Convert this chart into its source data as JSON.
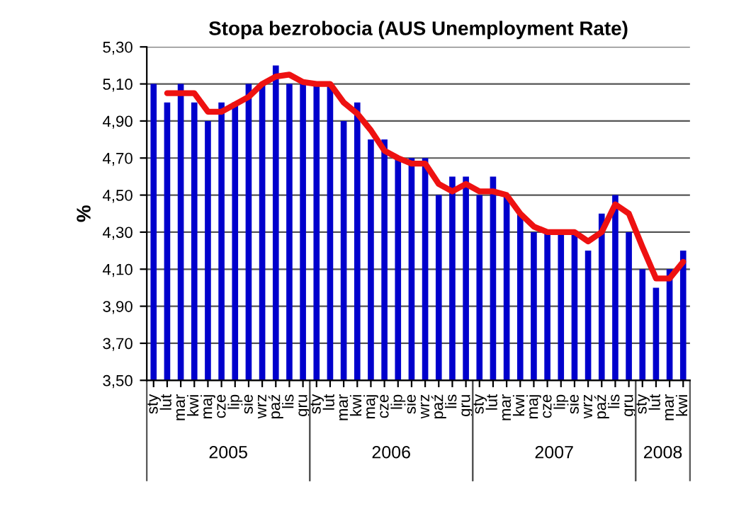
{
  "chart_data": {
    "type": "bar",
    "title": "Stopa bezrobocia (AUS Unemployment Rate)",
    "ylabel": "%",
    "categories": [
      "sty",
      "lut",
      "mar",
      "kwi",
      "maj",
      "cze",
      "lip",
      "sie",
      "wrz",
      "paź",
      "lis",
      "gru",
      "sty",
      "lut",
      "mar",
      "kwi",
      "maj",
      "cze",
      "lip",
      "sie",
      "wrz",
      "paź",
      "lis",
      "gru",
      "sty",
      "lut",
      "mar",
      "kwi",
      "maj",
      "cze",
      "lip",
      "sie",
      "wrz",
      "paź",
      "lis",
      "gru",
      "sty",
      "lut",
      "mar",
      "kwi"
    ],
    "series": [
      {
        "color": "#0000cc",
        "values": [
          5.1,
          5.0,
          5.1,
          5.0,
          4.9,
          5.0,
          5.0,
          5.1,
          5.1,
          5.2,
          5.1,
          5.1,
          5.1,
          5.1,
          4.9,
          5.0,
          4.8,
          4.8,
          4.7,
          4.7,
          4.7,
          4.5,
          4.6,
          4.6,
          4.5,
          4.6,
          4.5,
          4.4,
          4.3,
          4.3,
          4.3,
          4.3,
          4.2,
          4.4,
          4.5,
          4.3,
          4.1,
          4.0,
          4.1,
          4.2
        ]
      },
      {
        "type": "line",
        "color": "#ee1111",
        "values": [
          null,
          5.05,
          5.05,
          5.05,
          4.95,
          4.95,
          4.99,
          5.03,
          5.1,
          5.14,
          5.15,
          5.11,
          5.1,
          5.1,
          5.0,
          4.94,
          4.85,
          4.74,
          4.7,
          4.67,
          4.67,
          4.56,
          4.52,
          4.56,
          4.52,
          4.52,
          4.5,
          4.4,
          4.33,
          4.3,
          4.3,
          4.3,
          4.25,
          4.3,
          4.45,
          4.4,
          4.22,
          4.05,
          4.05,
          4.14
        ]
      }
    ],
    "annotations": [
      "2005",
      "2006",
      "2007",
      "2008"
    ],
    "ylim": [
      3.5,
      5.3
    ],
    "yticks": [
      {
        "value": 3.5,
        "label": "3,50"
      },
      {
        "value": 3.7,
        "label": "3,70"
      },
      {
        "value": 3.9,
        "label": "3,90"
      },
      {
        "value": 4.1,
        "label": "4,10"
      },
      {
        "value": 4.3,
        "label": "4,30"
      },
      {
        "value": 4.5,
        "label": "4,50"
      },
      {
        "value": 4.7,
        "label": "4,70"
      },
      {
        "value": 4.9,
        "label": "4,90"
      },
      {
        "value": 5.1,
        "label": "5,10"
      },
      {
        "value": 5.3,
        "label": "5,30"
      }
    ],
    "grid": "y",
    "legend": false
  }
}
